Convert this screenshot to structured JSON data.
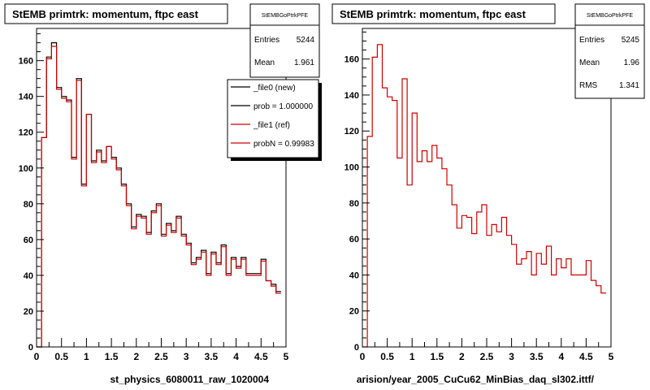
{
  "footer_left": "",
  "chart_data": [
    {
      "type": "step",
      "title": "StEMB primtrk: momentum, ftpc east",
      "xlabel": "st_physics_6080011_raw_1020004",
      "xlim": [
        0,
        5
      ],
      "ylim": [
        0,
        178
      ],
      "x_ticks": [
        0,
        0.5,
        1,
        1.5,
        2,
        2.5,
        3,
        3.5,
        4,
        4.5,
        5
      ],
      "x_tick_labels": [
        "0",
        "0.5",
        "1",
        "1.5",
        "2",
        "2.5",
        "3",
        "3.5",
        "4",
        "4.5",
        "5"
      ],
      "y_ticks": [
        0,
        20,
        40,
        60,
        80,
        100,
        120,
        140,
        160
      ],
      "y_tick_labels": [
        "0",
        "20",
        "40",
        "60",
        "80",
        "100",
        "120",
        "140",
        "160"
      ],
      "bin_width": 0.1,
      "stats": {
        "name": "StEMBGoPtrkPFE",
        "rows": [
          {
            "label": "Entries",
            "value": "5244"
          },
          {
            "label": "Mean",
            "value": "1.961"
          }
        ]
      },
      "legend": {
        "entries": [
          {
            "label": "_file0 (new)",
            "color": "#000000"
          },
          {
            "label": "prob = 1.000000",
            "color": "#000000"
          },
          {
            "label": "_file1 (ref)",
            "color": "#cc0000"
          },
          {
            "label": "probN = 0.99983",
            "color": "#cc0000"
          }
        ]
      },
      "series": [
        {
          "color": "#000000",
          "values": [
            0,
            117,
            162,
            170,
            145,
            140,
            138,
            106,
            150,
            91,
            130,
            104,
            110,
            104,
            112,
            106,
            100,
            91,
            80,
            67,
            74,
            73,
            64,
            76,
            80,
            63,
            69,
            65,
            73,
            63,
            58,
            47,
            50,
            54,
            41,
            53,
            47,
            57,
            41,
            50,
            45,
            50,
            41,
            41,
            41,
            49,
            37,
            35,
            31
          ]
        },
        {
          "color": "#cc0000",
          "values": [
            0,
            117,
            161,
            168,
            144,
            139,
            137,
            105,
            149,
            90,
            130,
            103,
            109,
            103,
            112,
            105,
            99,
            90,
            79,
            66,
            73,
            72,
            63,
            75,
            79,
            62,
            68,
            64,
            72,
            62,
            57,
            46,
            49,
            53,
            40,
            52,
            46,
            56,
            40,
            49,
            44,
            49,
            40,
            40,
            40,
            48,
            37,
            34,
            30
          ]
        }
      ]
    },
    {
      "type": "step",
      "title": "StEMB primtrk: momentum, ftpc east",
      "xlabel": "arision/year_2005_CuCu62_MinBias_daq_sl302.ittf/",
      "xlim": [
        0,
        5
      ],
      "ylim": [
        0,
        177
      ],
      "x_ticks": [
        0,
        0.5,
        1,
        1.5,
        2,
        2.5,
        3,
        3.5,
        4,
        4.5,
        5
      ],
      "x_tick_labels": [
        "0",
        "0.5",
        "1",
        "1.5",
        "2",
        "2.5",
        "3",
        "3.5",
        "4",
        "4.5",
        "5"
      ],
      "y_ticks": [
        0,
        20,
        40,
        60,
        80,
        100,
        120,
        140,
        160
      ],
      "y_tick_labels": [
        "0",
        "20",
        "40",
        "60",
        "80",
        "100",
        "120",
        "140",
        "160"
      ],
      "bin_width": 0.1,
      "stats": {
        "name": "StEMBGoPtrkPFE",
        "rows": [
          {
            "label": "Entries",
            "value": "5245"
          },
          {
            "label": "Mean",
            "value": "1.96"
          },
          {
            "label": "RMS",
            "value": "1.341"
          }
        ]
      },
      "series": [
        {
          "color": "#cc0000",
          "values": [
            0,
            117,
            161,
            168,
            144,
            139,
            137,
            105,
            149,
            90,
            130,
            103,
            109,
            103,
            112,
            105,
            99,
            90,
            79,
            66,
            73,
            72,
            63,
            75,
            79,
            62,
            68,
            64,
            72,
            62,
            57,
            46,
            49,
            53,
            40,
            52,
            46,
            56,
            40,
            49,
            44,
            49,
            40,
            40,
            40,
            48,
            37,
            34,
            30
          ]
        }
      ]
    }
  ]
}
